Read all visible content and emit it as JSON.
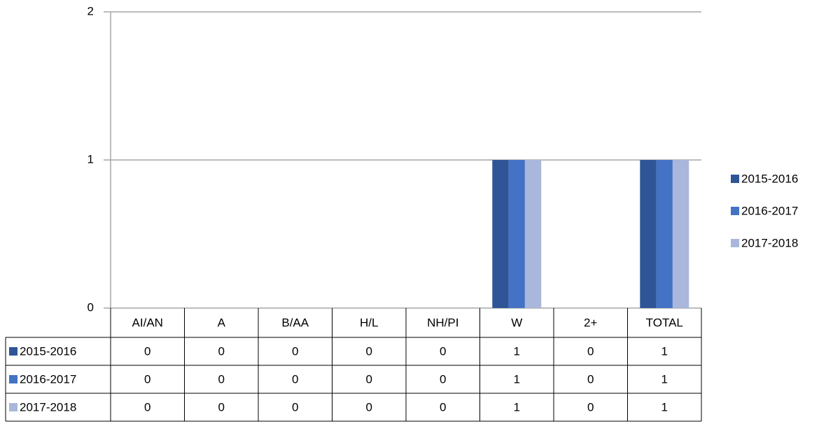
{
  "chart_data": {
    "type": "bar",
    "categories": [
      "AI/AN",
      "A",
      "B/AA",
      "H/L",
      "NH/PI",
      "W",
      "2+",
      "TOTAL"
    ],
    "series": [
      {
        "name": "2015-2016",
        "color": "#2f5597",
        "values": [
          0,
          0,
          0,
          0,
          0,
          1,
          0,
          1
        ]
      },
      {
        "name": "2016-2017",
        "color": "#4472c4",
        "values": [
          0,
          0,
          0,
          0,
          0,
          1,
          0,
          1
        ]
      },
      {
        "name": "2017-2018",
        "color": "#a9b7dc",
        "values": [
          0,
          0,
          0,
          0,
          0,
          1,
          0,
          1
        ]
      }
    ],
    "ylim": [
      0,
      2
    ],
    "yticks": [
      0,
      1,
      2
    ],
    "grid": true,
    "legend": "right",
    "data_table": true
  }
}
